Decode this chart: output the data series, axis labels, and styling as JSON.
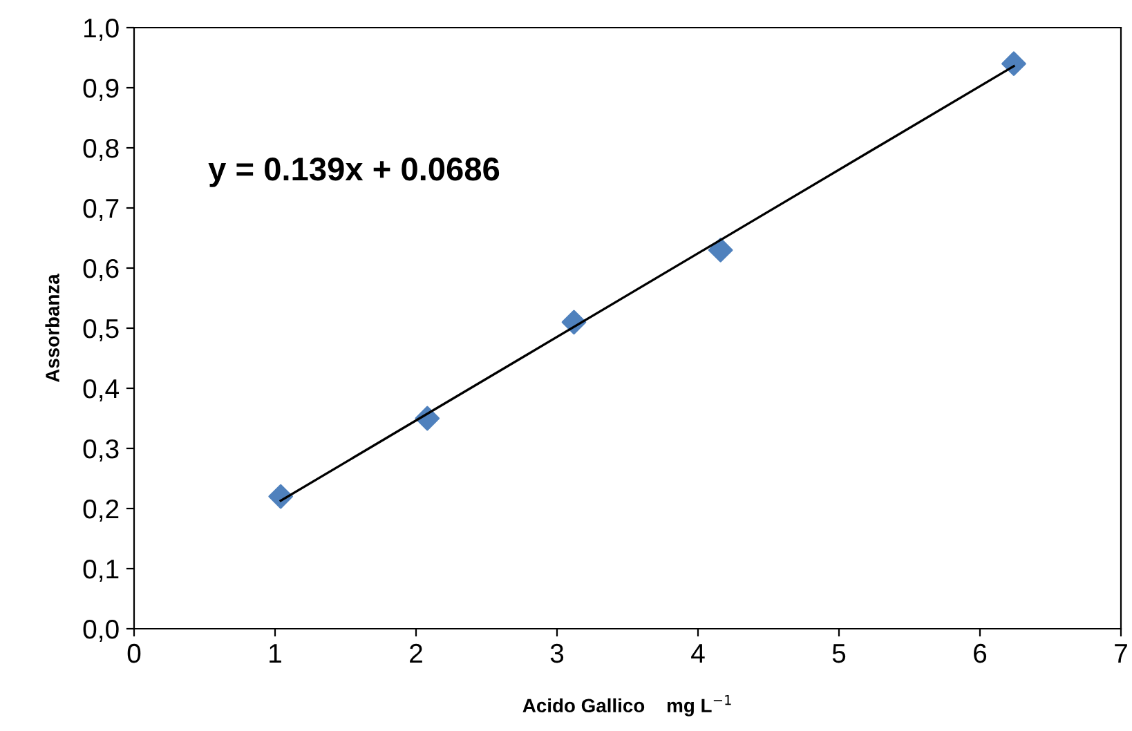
{
  "chart_data": {
    "type": "scatter",
    "xlabel": "Acido Gallico    mg L$^{−1}$",
    "ylabel": "Assorbanza",
    "series": [
      {
        "color": "#4f81bd",
        "marker": "diamond",
        "x": [
          1.04,
          2.08,
          3.12,
          4.16,
          6.24
        ],
        "values": [
          0.22,
          0.35,
          0.51,
          0.63,
          0.94
        ]
      },
      {
        "type": "line",
        "color": "#000000",
        "x": [
          1.04,
          6.24
        ],
        "values": [
          0.213,
          0.936
        ]
      }
    ],
    "annotations": [
      "y = 0.139x + 0.0686"
    ],
    "xlim": [
      0,
      7
    ],
    "xticks": [
      0,
      1,
      2,
      3,
      4,
      5,
      6,
      7
    ],
    "ylim": [
      0,
      1
    ],
    "yticks": [
      {
        "value": 0,
        "label": "0,0"
      },
      {
        "value": 0.1,
        "label": "0,1"
      },
      {
        "value": 0.2,
        "label": "0,2"
      },
      {
        "value": 0.3,
        "label": "0,3"
      },
      {
        "value": 0.4,
        "label": "0,4"
      },
      {
        "value": 0.5,
        "label": "0,5"
      },
      {
        "value": 0.6,
        "label": "0,6"
      },
      {
        "value": 0.7,
        "label": "0,7"
      },
      {
        "value": 0.8,
        "label": "0,8"
      },
      {
        "value": 0.9,
        "label": "0,9"
      },
      {
        "value": 1.0,
        "label": "1,0"
      }
    ],
    "grid": false
  }
}
